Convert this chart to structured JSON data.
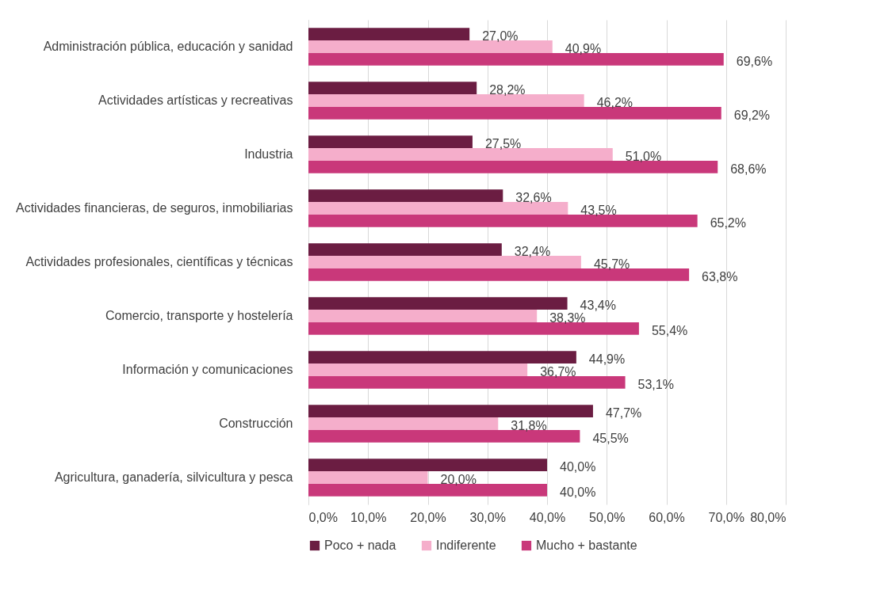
{
  "chart_data": {
    "type": "bar",
    "orientation": "horizontal",
    "categories": [
      "Administración pública, educación y sanidad",
      "Actividades artísticas y recreativas",
      "Industria",
      "Actividades financieras, de seguros, inmobiliarias",
      "Actividades profesionales, científicas y técnicas",
      "Comercio, transporte y hostelería",
      "Información y comunicaciones",
      "Construcción",
      "Agricultura, ganadería, silvicultura y pesca"
    ],
    "series": [
      {
        "name": "Poco + nada",
        "color": "#6b1d42",
        "values": [
          27.0,
          28.2,
          27.5,
          32.6,
          32.4,
          43.4,
          44.9,
          47.7,
          40.0
        ],
        "value_labels": [
          "27,0%",
          "28,2%",
          "27,5%",
          "32,6%",
          "32,4%",
          "43,4%",
          "44,9%",
          "47,7%",
          "40,0%"
        ]
      },
      {
        "name": "Indiferente",
        "color": "#f5aecb",
        "values": [
          40.9,
          46.2,
          51.0,
          43.5,
          45.7,
          38.3,
          36.7,
          31.8,
          20.0
        ],
        "value_labels": [
          "40,9%",
          "46,2%",
          "51,0%",
          "43,5%",
          "45,7%",
          "38,3%",
          "36,7%",
          "31,8%",
          "20,0%"
        ]
      },
      {
        "name": "Mucho + bastante",
        "color": "#c9387a",
        "values": [
          69.6,
          69.2,
          68.6,
          65.2,
          63.8,
          55.4,
          53.1,
          45.5,
          40.0
        ],
        "value_labels": [
          "69,6%",
          "69,2%",
          "68,6%",
          "65,2%",
          "63,8%",
          "55,4%",
          "53,1%",
          "45,5%",
          "40,0%"
        ]
      }
    ],
    "xlim": [
      0,
      80
    ],
    "xticks": [
      {
        "value": 0,
        "label": "0,0%"
      },
      {
        "value": 10,
        "label": "10,0%"
      },
      {
        "value": 20,
        "label": "20,0%"
      },
      {
        "value": 30,
        "label": "30,0%"
      },
      {
        "value": 40,
        "label": "40,0%"
      },
      {
        "value": 50,
        "label": "50,0%"
      },
      {
        "value": 60,
        "label": "60,0%"
      },
      {
        "value": 70,
        "label": "70,0%"
      },
      {
        "value": 80,
        "label": "80,0%"
      }
    ],
    "grid": "x",
    "legend": "bottom"
  }
}
